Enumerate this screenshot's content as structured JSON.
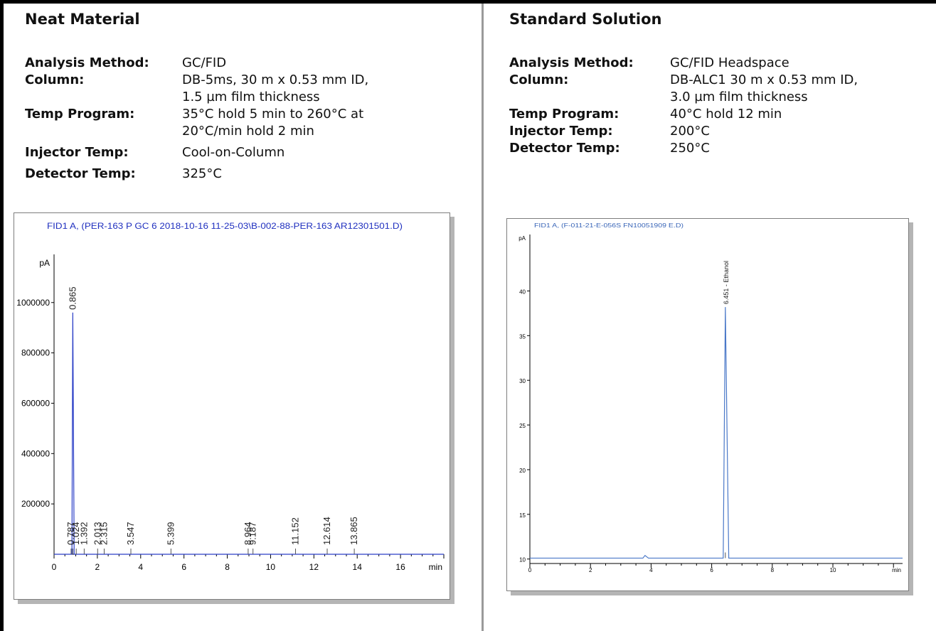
{
  "left": {
    "title": "Neat Material",
    "rows": [
      {
        "label": "Analysis Method:",
        "value": "GC/FID"
      },
      {
        "label": "Column:",
        "value": "DB-5ms, 30 m x 0.53 mm ID,\n1.5 µm film thickness"
      },
      {
        "label": "Temp Program:",
        "value": "35°C hold 5 min to 260°C at\n20°C/min hold 2 min"
      },
      {
        "label": "Injector Temp:",
        "value": "Cool-on-Column"
      },
      {
        "label": "Detector Temp:",
        "value": "325°C"
      }
    ]
  },
  "right": {
    "title": "Standard Solution",
    "rows": [
      {
        "label": "Analysis Method:",
        "value": "GC/FID Headspace"
      },
      {
        "label": "Column:",
        "value": "DB-ALC1 30 m x 0.53 mm ID,\n3.0 µm film thickness"
      },
      {
        "label": "Temp Program:",
        "value": "40°C hold 12 min"
      },
      {
        "label": "Injector Temp:",
        "value": "200°C"
      },
      {
        "label": "Detector Temp:",
        "value": "250°C"
      }
    ]
  },
  "chart_data": [
    {
      "type": "line",
      "title": "FID1 A, (PER-163 P GC 6 2018-10-16 11-25-03\\B-002-88-PER-163 AR12301501.D)",
      "ylabel": "pA",
      "xlabel": "min",
      "xlim": [
        0,
        18
      ],
      "ylim": [
        0,
        1180000
      ],
      "xticks": [
        0,
        2,
        4,
        6,
        8,
        10,
        12,
        14,
        16
      ],
      "yticks": [
        200000,
        400000,
        600000,
        800000,
        1000000
      ],
      "ytick_labels": [
        "200000",
        "400000",
        "600000",
        "800000",
        "1000000"
      ],
      "baseline": 0,
      "colors": {
        "trace": "#2b3fc7",
        "title": "#1f2fbf",
        "axis": "#000000"
      },
      "peaks": [
        {
          "rt": 0.787,
          "label": "0.787",
          "height": 0
        },
        {
          "rt": 0.865,
          "label": "0.865",
          "height": 960000
        },
        {
          "rt": 1.024,
          "label": "1.024",
          "height": 0
        },
        {
          "rt": 1.392,
          "label": "1.392",
          "height": 0
        },
        {
          "rt": 2.013,
          "label": "2.013",
          "height": 0
        },
        {
          "rt": 2.315,
          "label": "2.315",
          "height": 0
        },
        {
          "rt": 3.547,
          "label": "3.547",
          "height": 0
        },
        {
          "rt": 5.399,
          "label": "5.399",
          "height": 0
        },
        {
          "rt": 8.964,
          "label": "8.964",
          "height": 0
        },
        {
          "rt": 9.187,
          "label": "9.187",
          "height": 0
        },
        {
          "rt": 11.152,
          "label": "11.152",
          "height": 0
        },
        {
          "rt": 12.614,
          "label": "12.614",
          "height": 0
        },
        {
          "rt": 13.865,
          "label": "13.865",
          "height": 0
        }
      ]
    },
    {
      "type": "line",
      "title": "FID1 A, (F-011-21-E-056S FN10051909 E.D)",
      "ylabel": "pA",
      "xlabel": "min",
      "xlim": [
        0,
        12.3
      ],
      "ylim": [
        9.5,
        46
      ],
      "xticks": [
        0,
        2,
        4,
        6,
        8,
        10
      ],
      "yticks": [
        10,
        15,
        20,
        25,
        30,
        35,
        40
      ],
      "baseline": 10.1,
      "colors": {
        "trace": "#4a78c8",
        "title": "#3a66b8",
        "axis": "#000000"
      },
      "peaks": [
        {
          "rt": 3.8,
          "label": "",
          "height": 10.4
        },
        {
          "rt": 6.451,
          "label": "6.451 - Ethanol",
          "height": 38.2
        }
      ]
    }
  ]
}
